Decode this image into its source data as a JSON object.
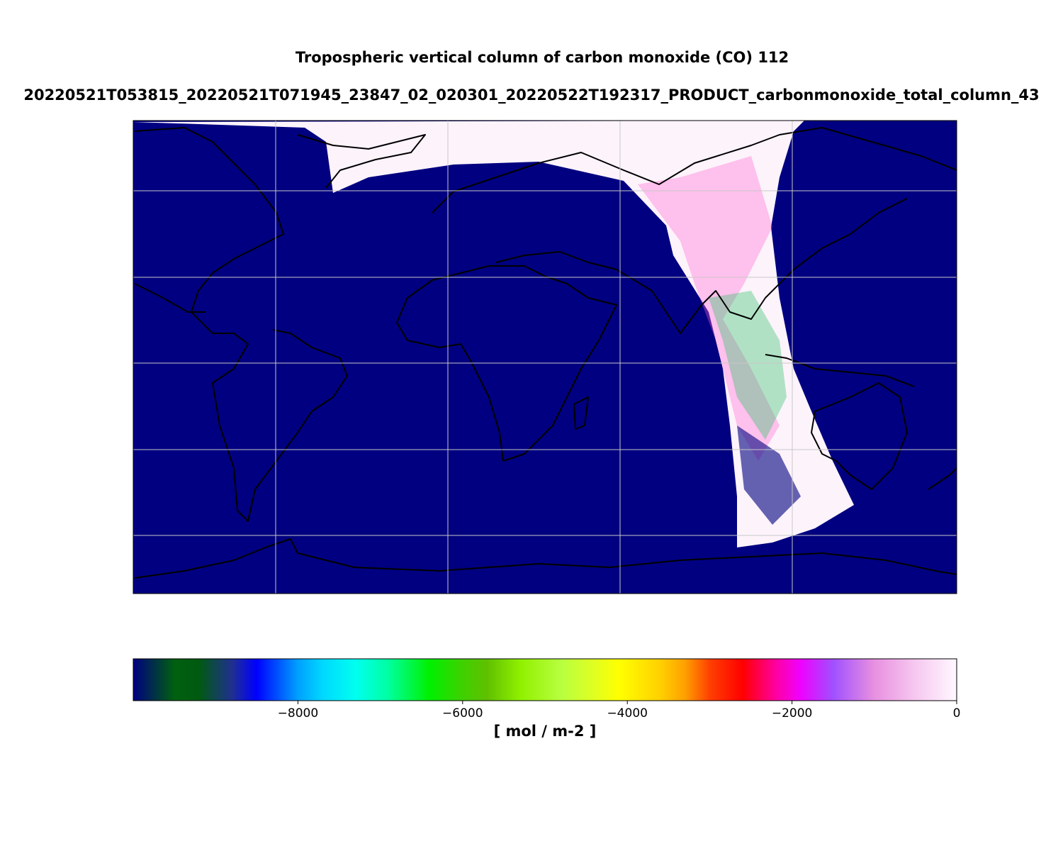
{
  "chart_data": {
    "type": "map",
    "title": "Tropospheric vertical column of carbon monoxide (CO) 112",
    "subtitle": "20220521T053815_20220521T071945_23847_02_020301_20220522T192317_PRODUCT_carbonmonoxide_total_column_43",
    "colorbar": {
      "label": "[ mol / m-2 ]",
      "lim": [
        -10000,
        0
      ],
      "ticks": [
        {
          "value": -8000,
          "label": "−8000"
        },
        {
          "value": -6000,
          "label": "−6000"
        },
        {
          "value": -4000,
          "label": "−4000"
        },
        {
          "value": -2000,
          "label": "−2000"
        },
        0
      ]
    }
  }
}
